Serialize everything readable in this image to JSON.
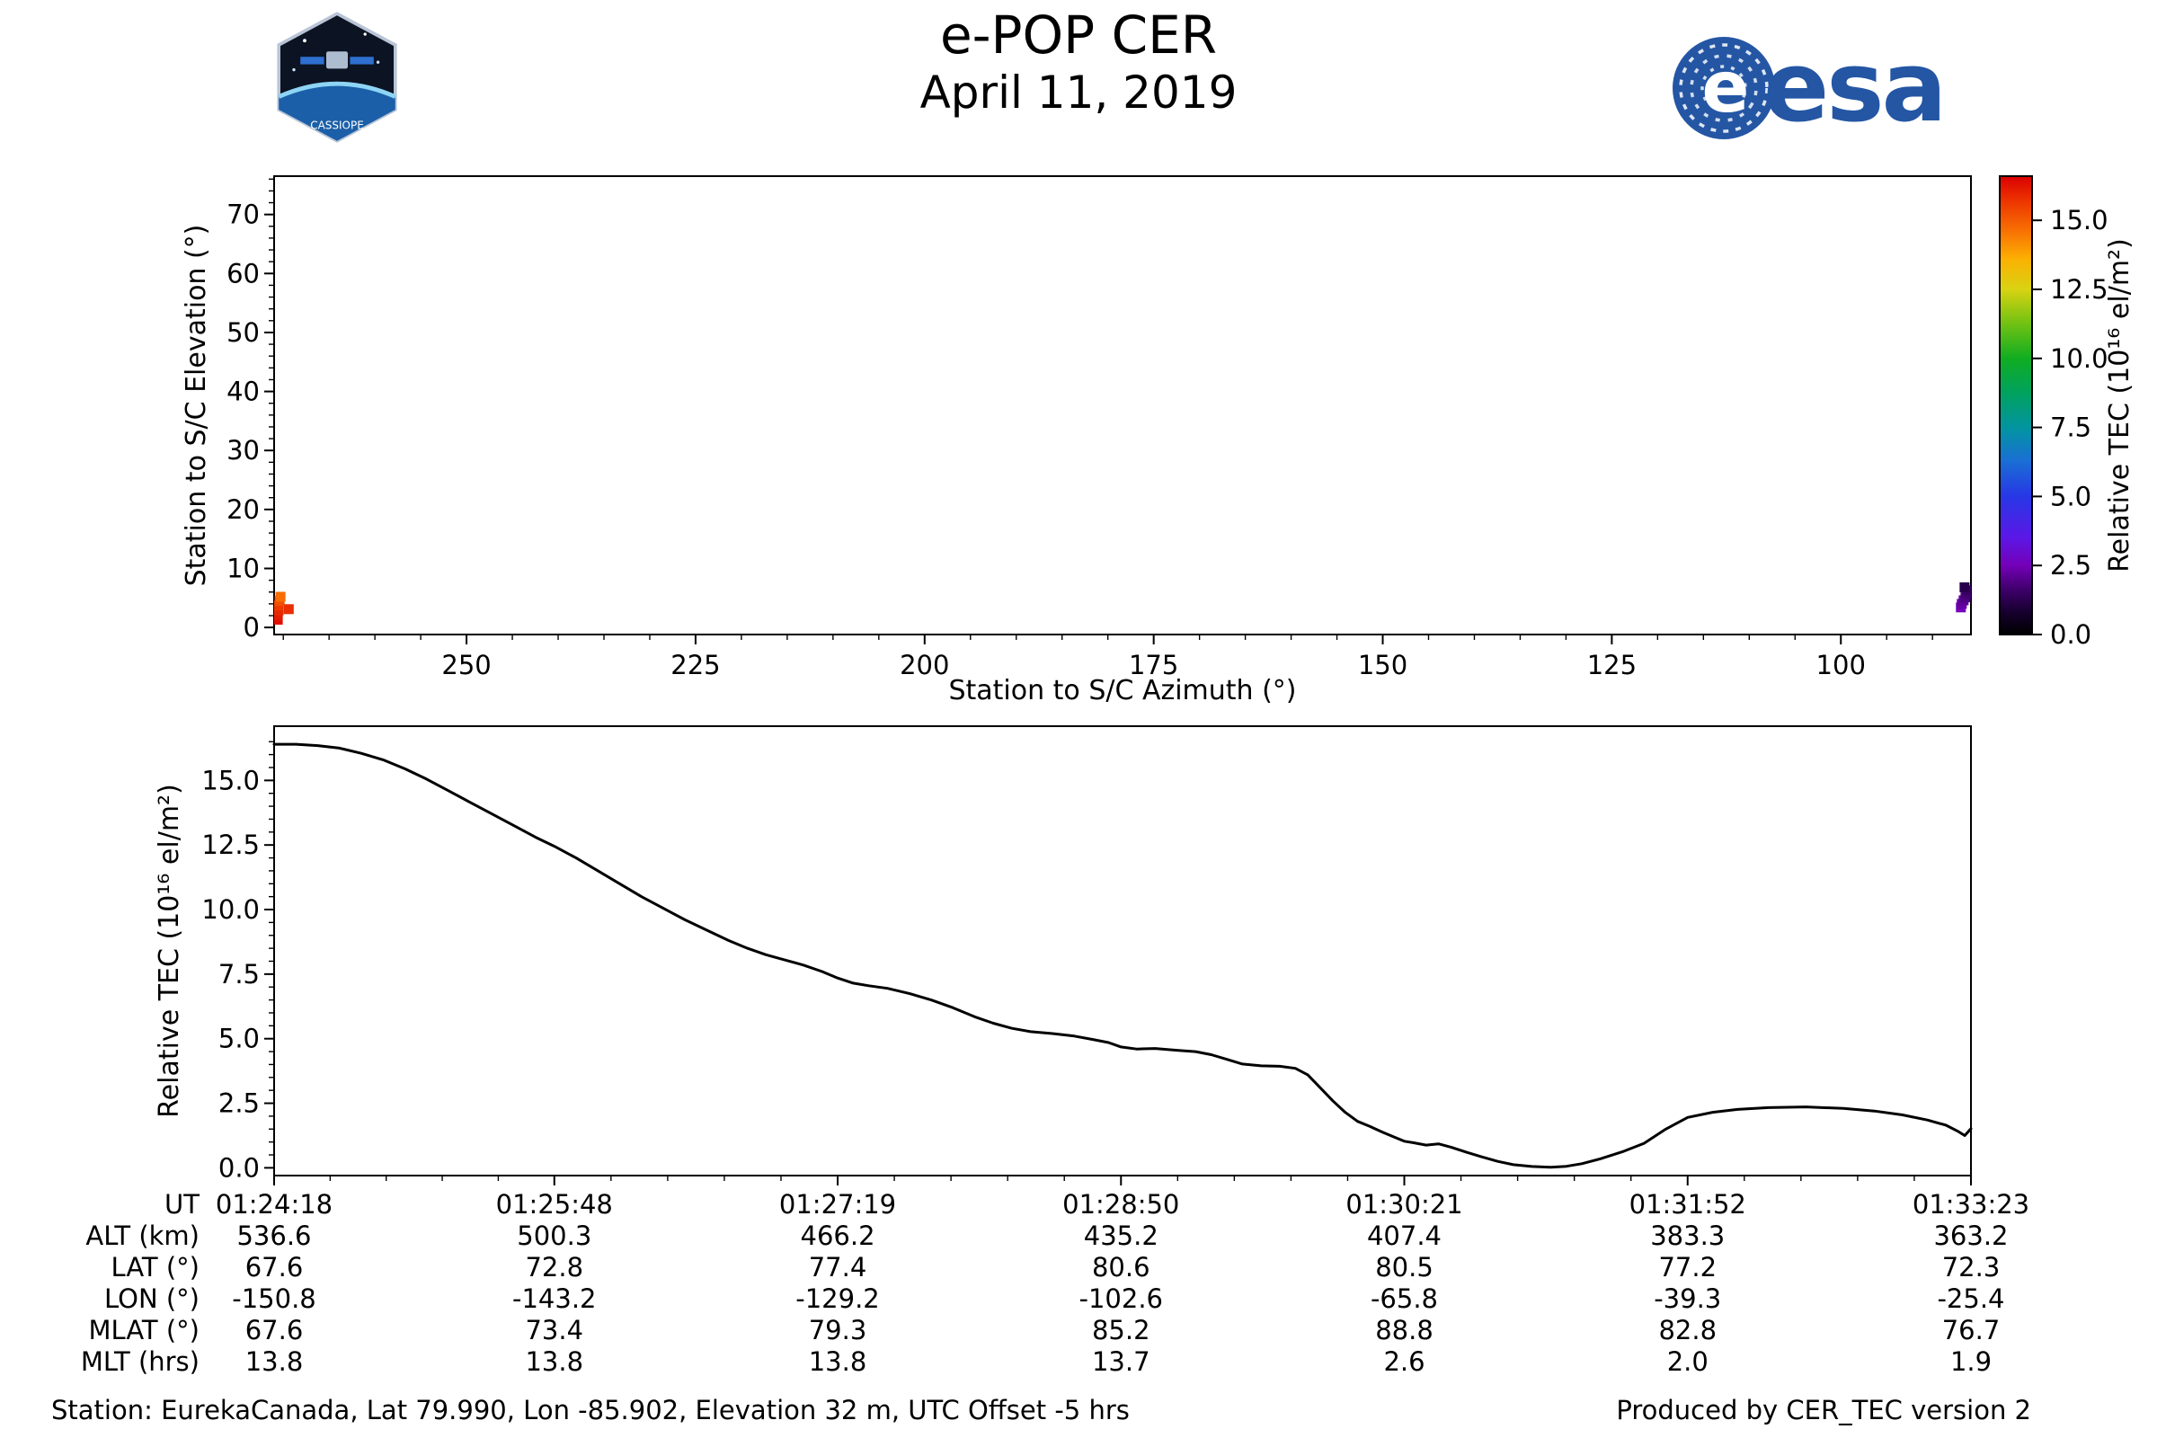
{
  "header": {
    "title": "e-POP CER",
    "date": "April 11, 2019",
    "esa_wordmark": "esa",
    "cassiope_label": "CASSIOPE"
  },
  "footer": {
    "station_info": "Station: EurekaCanada, Lat 79.990, Lon -85.902, Elevation 32 m, UTC Offset -5 hrs",
    "produced_by": "Produced by CER_TEC version 2"
  },
  "colors": {
    "esa_blue": "#2456a4",
    "line_color": "#000000",
    "background": "#ffffff"
  },
  "chart_data": [
    {
      "type": "scatter",
      "title": "",
      "xlabel": "Station to S/C Azimuth (°)",
      "ylabel": "Station to S/C Elevation (°)",
      "xlim": [
        271,
        85.8
      ],
      "ylim": [
        -1.2,
        76.5
      ],
      "xticks": [
        250,
        225,
        200,
        175,
        150,
        125,
        100
      ],
      "x_minor_step": 5,
      "yticks": [
        0,
        10,
        20,
        30,
        40,
        50,
        60,
        70
      ],
      "y_minor_step": 2,
      "grid": false,
      "marker": "square",
      "points_az_el_tec": [
        [
          270.6,
          1.3,
          16.3
        ],
        [
          270.6,
          2.1,
          16.1
        ],
        [
          270.5,
          2.9,
          15.9
        ],
        [
          270.5,
          3.7,
          15.6
        ],
        [
          270.4,
          4.5,
          15.2
        ],
        [
          270.3,
          5.2,
          14.7
        ],
        [
          269.4,
          3.1,
          15.8
        ],
        [
          86.9,
          3.4,
          2.5
        ],
        [
          86.8,
          4.0,
          2.3
        ],
        [
          86.6,
          4.6,
          2.1
        ],
        [
          86.4,
          5.1,
          1.9
        ],
        [
          86.3,
          5.7,
          1.7
        ],
        [
          86.1,
          6.3,
          1.5
        ],
        [
          86.5,
          6.8,
          1.2
        ]
      ]
    },
    {
      "type": "colorbar",
      "label": "Relative TEC (10¹⁶ el/m²)",
      "range": [
        0,
        16.6
      ],
      "ticks": [
        0.0,
        2.5,
        5.0,
        7.5,
        10.0,
        12.5,
        15.0
      ],
      "stops": [
        [
          0,
          "#000000"
        ],
        [
          0.8,
          "#16002e"
        ],
        [
          1.6,
          "#3c0068"
        ],
        [
          2.5,
          "#7400b8"
        ],
        [
          3.5,
          "#5c17e6"
        ],
        [
          5.0,
          "#2737e6"
        ],
        [
          6.3,
          "#1a6fd4"
        ],
        [
          7.5,
          "#0295a0"
        ],
        [
          8.8,
          "#01a25c"
        ],
        [
          10.0,
          "#10ad21"
        ],
        [
          11.3,
          "#74c213"
        ],
        [
          12.5,
          "#d8d312"
        ],
        [
          13.6,
          "#fcb002"
        ],
        [
          14.6,
          "#f87203"
        ],
        [
          15.6,
          "#ee3a00"
        ],
        [
          16.6,
          "#db0000"
        ]
      ]
    },
    {
      "type": "line",
      "xlabel": "UT",
      "ylabel": "Relative TEC (10¹⁶ el/m²)",
      "ylim": [
        -0.3,
        17.1
      ],
      "yticks": [
        0.0,
        2.5,
        5.0,
        7.5,
        10.0,
        12.5,
        15.0
      ],
      "y_minor_step": 0.5,
      "x_range_seconds": [
        0,
        545
      ],
      "xticks_seconds": [
        0,
        90,
        181,
        272,
        363,
        454,
        545
      ],
      "xtick_labels": [
        "01:24:18",
        "01:25:48",
        "01:27:19",
        "01:28:50",
        "01:30:21",
        "01:31:52",
        "01:33:23"
      ],
      "line_width": 3,
      "series_t_tec": [
        [
          0,
          16.4
        ],
        [
          7,
          16.4
        ],
        [
          14,
          16.35
        ],
        [
          21,
          16.25
        ],
        [
          28,
          16.05
        ],
        [
          35,
          15.8
        ],
        [
          42,
          15.45
        ],
        [
          49,
          15.05
        ],
        [
          56,
          14.6
        ],
        [
          63,
          14.15
        ],
        [
          70,
          13.7
        ],
        [
          77,
          13.25
        ],
        [
          84,
          12.8
        ],
        [
          90,
          12.45
        ],
        [
          97,
          12.0
        ],
        [
          104,
          11.5
        ],
        [
          111,
          11.0
        ],
        [
          118,
          10.5
        ],
        [
          125,
          10.05
        ],
        [
          132,
          9.6
        ],
        [
          139,
          9.2
        ],
        [
          146,
          8.8
        ],
        [
          152,
          8.5
        ],
        [
          158,
          8.25
        ],
        [
          164,
          8.05
        ],
        [
          170,
          7.85
        ],
        [
          176,
          7.6
        ],
        [
          181,
          7.35
        ],
        [
          186,
          7.15
        ],
        [
          191,
          7.05
        ],
        [
          197,
          6.95
        ],
        [
          204,
          6.75
        ],
        [
          211,
          6.5
        ],
        [
          218,
          6.2
        ],
        [
          225,
          5.85
        ],
        [
          231,
          5.6
        ],
        [
          237,
          5.4
        ],
        [
          243,
          5.27
        ],
        [
          250,
          5.2
        ],
        [
          257,
          5.1
        ],
        [
          263,
          4.97
        ],
        [
          268,
          4.85
        ],
        [
          272,
          4.68
        ],
        [
          277,
          4.6
        ],
        [
          283,
          4.62
        ],
        [
          290,
          4.55
        ],
        [
          296,
          4.5
        ],
        [
          301,
          4.38
        ],
        [
          306,
          4.2
        ],
        [
          311,
          4.02
        ],
        [
          317,
          3.95
        ],
        [
          323,
          3.93
        ],
        [
          328,
          3.85
        ],
        [
          332,
          3.6
        ],
        [
          336,
          3.1
        ],
        [
          340,
          2.6
        ],
        [
          344,
          2.15
        ],
        [
          348,
          1.8
        ],
        [
          352,
          1.6
        ],
        [
          356,
          1.38
        ],
        [
          360,
          1.18
        ],
        [
          363,
          1.03
        ],
        [
          366,
          0.97
        ],
        [
          370,
          0.88
        ],
        [
          374,
          0.93
        ],
        [
          378,
          0.8
        ],
        [
          383,
          0.6
        ],
        [
          388,
          0.42
        ],
        [
          393,
          0.25
        ],
        [
          398,
          0.12
        ],
        [
          404,
          0.05
        ],
        [
          410,
          0.02
        ],
        [
          415,
          0.06
        ],
        [
          420,
          0.16
        ],
        [
          426,
          0.35
        ],
        [
          433,
          0.62
        ],
        [
          440,
          0.95
        ],
        [
          447,
          1.5
        ],
        [
          454,
          1.95
        ],
        [
          462,
          2.15
        ],
        [
          470,
          2.26
        ],
        [
          480,
          2.33
        ],
        [
          492,
          2.36
        ],
        [
          504,
          2.3
        ],
        [
          514,
          2.2
        ],
        [
          523,
          2.05
        ],
        [
          531,
          1.85
        ],
        [
          537,
          1.65
        ],
        [
          541,
          1.4
        ],
        [
          543,
          1.25
        ],
        [
          545,
          1.52
        ]
      ]
    }
  ],
  "ephemeris": {
    "rows": [
      {
        "label": "UT",
        "values": [
          "01:24:18",
          "01:25:48",
          "01:27:19",
          "01:28:50",
          "01:30:21",
          "01:31:52",
          "01:33:23"
        ]
      },
      {
        "label": "ALT (km)",
        "values": [
          "536.6",
          "500.3",
          "466.2",
          "435.2",
          "407.4",
          "383.3",
          "363.2"
        ]
      },
      {
        "label": "LAT (°)",
        "values": [
          "67.6",
          "72.8",
          "77.4",
          "80.6",
          "80.5",
          "77.2",
          "72.3"
        ]
      },
      {
        "label": "LON (°)",
        "values": [
          "-150.8",
          "-143.2",
          "-129.2",
          "-102.6",
          "-65.8",
          "-39.3",
          "-25.4"
        ]
      },
      {
        "label": "MLAT (°)",
        "values": [
          "67.6",
          "73.4",
          "79.3",
          "85.2",
          "88.8",
          "82.8",
          "76.7"
        ]
      },
      {
        "label": "MLT (hrs)",
        "values": [
          "13.8",
          "13.8",
          "13.8",
          "13.7",
          "2.6",
          "2.0",
          "1.9"
        ]
      }
    ]
  }
}
